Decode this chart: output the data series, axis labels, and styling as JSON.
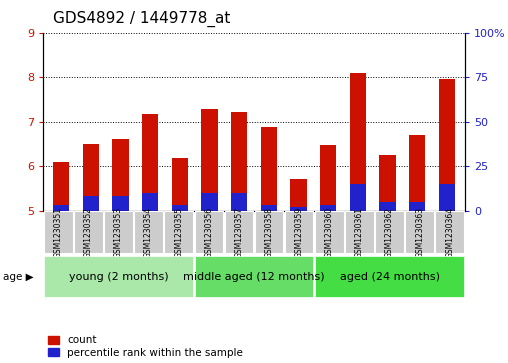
{
  "title": "GDS4892 / 1449778_at",
  "samples": [
    "GSM1230351",
    "GSM1230352",
    "GSM1230353",
    "GSM1230354",
    "GSM1230355",
    "GSM1230356",
    "GSM1230357",
    "GSM1230358",
    "GSM1230359",
    "GSM1230360",
    "GSM1230361",
    "GSM1230362",
    "GSM1230363",
    "GSM1230364"
  ],
  "count_values": [
    6.1,
    6.5,
    6.62,
    7.18,
    6.18,
    7.28,
    7.22,
    6.88,
    5.72,
    6.48,
    8.1,
    6.25,
    6.7,
    7.95
  ],
  "percentile_values": [
    3,
    8,
    8,
    10,
    3,
    10,
    10,
    3,
    2,
    3,
    15,
    5,
    5,
    15
  ],
  "baseline": 5.0,
  "ylim_left": [
    5,
    9
  ],
  "ylim_right": [
    0,
    100
  ],
  "yticks_left": [
    5,
    6,
    7,
    8,
    9
  ],
  "yticks_right": [
    0,
    25,
    50,
    75,
    100
  ],
  "ytick_labels_right": [
    "0",
    "25",
    "50",
    "75",
    "100%"
  ],
  "groups": [
    {
      "label": "young (2 months)",
      "start": 0,
      "end": 5
    },
    {
      "label": "middle aged (12 months)",
      "start": 5,
      "end": 9
    },
    {
      "label": "aged (24 months)",
      "start": 9,
      "end": 14
    }
  ],
  "group_colors": [
    "#aae8aa",
    "#66dd66",
    "#44dd44"
  ],
  "age_label": "age",
  "bar_color_red": "#cc1100",
  "bar_color_blue": "#2222cc",
  "bar_width": 0.55,
  "legend_red": "count",
  "legend_blue": "percentile rank within the sample",
  "title_fontsize": 11,
  "tick_fontsize": 8,
  "sample_fontsize": 5.5,
  "group_fontsize": 8
}
